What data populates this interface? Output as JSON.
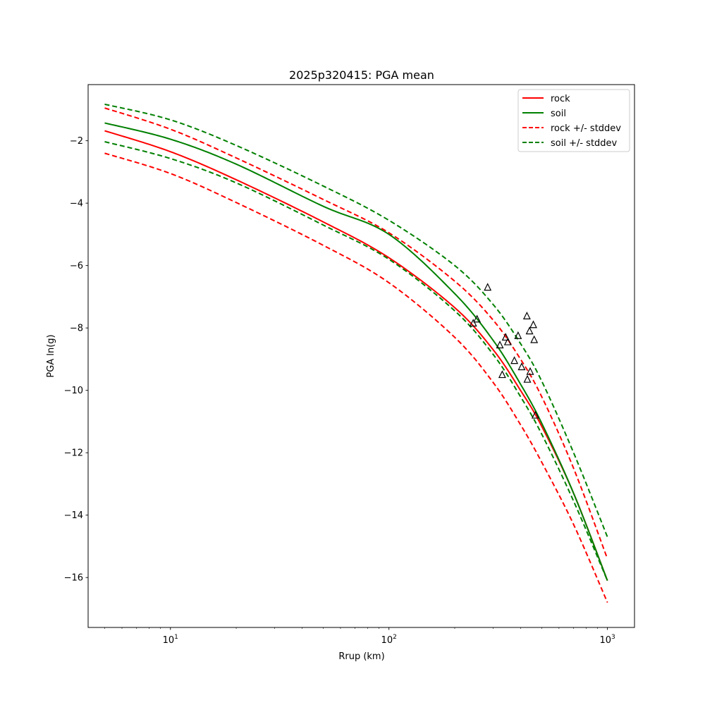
{
  "chart_data": {
    "type": "line",
    "title": "2025p320415: PGA mean",
    "xlabel": "Rrup (km)",
    "ylabel": "PGA ln(g)",
    "xscale": "log",
    "xlim": [
      4.2,
      1330
    ],
    "ylim": [
      -17.6,
      -0.2
    ],
    "xticks": [
      {
        "value": 10,
        "base": "10",
        "exp": "1"
      },
      {
        "value": 100,
        "base": "10",
        "exp": "2"
      },
      {
        "value": 1000,
        "base": "10",
        "exp": "3"
      }
    ],
    "yticks": [
      -2,
      -4,
      -6,
      -8,
      -10,
      -12,
      -14,
      -16
    ],
    "grid": false,
    "legend_position": "top-right",
    "legend": [
      {
        "label": "rock",
        "color": "#ff0000",
        "style": "solid"
      },
      {
        "label": "soil",
        "color": "#008000",
        "style": "solid"
      },
      {
        "label": "rock +/- stddev",
        "color": "#ff0000",
        "style": "dashed"
      },
      {
        "label": "soil +/- stddev",
        "color": "#008000",
        "style": "dashed"
      }
    ],
    "x": [
      5,
      10,
      20,
      50,
      100,
      200,
      300,
      400,
      500,
      700,
      1000
    ],
    "series": [
      {
        "name": "rock",
        "color": "#ff0000",
        "style": "solid",
        "values": [
          -1.68,
          -2.35,
          -3.25,
          -4.6,
          -5.75,
          -7.35,
          -8.7,
          -10.0,
          -11.15,
          -13.3,
          -16.1
        ]
      },
      {
        "name": "soil",
        "color": "#008000",
        "style": "solid",
        "values": [
          -1.43,
          -1.95,
          -2.75,
          -4.1,
          -5.0,
          -6.9,
          -8.4,
          -9.8,
          -11.05,
          -13.3,
          -16.1
        ]
      },
      {
        "name": "rock +/- stddev",
        "color": "#ff0000",
        "style": "dashed",
        "values": [
          -2.4,
          -3.05,
          -3.98,
          -5.35,
          -6.55,
          -8.3,
          -9.75,
          -11.1,
          -12.3,
          -14.3,
          -16.8
        ]
      },
      {
        "name": "rock +/- stddev",
        "color": "#ff0000",
        "style": "dashed",
        "values": [
          -0.95,
          -1.63,
          -2.55,
          -3.88,
          -4.95,
          -6.5,
          -7.75,
          -9.0,
          -10.2,
          -12.5,
          -15.4
        ]
      },
      {
        "name": "soil +/- stddev",
        "color": "#008000",
        "style": "dashed",
        "values": [
          -2.03,
          -2.57,
          -3.35,
          -4.7,
          -5.8,
          -7.45,
          -8.85,
          -10.2,
          -11.4,
          -13.55,
          -16.1
        ]
      },
      {
        "name": "soil +/- stddev",
        "color": "#008000",
        "style": "dashed",
        "values": [
          -0.83,
          -1.33,
          -2.15,
          -3.45,
          -4.55,
          -6.0,
          -7.25,
          -8.5,
          -9.7,
          -12.0,
          -14.7
        ]
      }
    ],
    "observations": {
      "marker": "triangle",
      "points": [
        {
          "x": 243,
          "y": -7.85
        },
        {
          "x": 253,
          "y": -7.72
        },
        {
          "x": 283,
          "y": -6.7
        },
        {
          "x": 322,
          "y": -8.55
        },
        {
          "x": 330,
          "y": -9.5
        },
        {
          "x": 342,
          "y": -8.3
        },
        {
          "x": 350,
          "y": -8.45
        },
        {
          "x": 375,
          "y": -9.05
        },
        {
          "x": 390,
          "y": -8.25
        },
        {
          "x": 405,
          "y": -9.25
        },
        {
          "x": 428,
          "y": -7.62
        },
        {
          "x": 430,
          "y": -9.65
        },
        {
          "x": 440,
          "y": -8.1
        },
        {
          "x": 443,
          "y": -9.4
        },
        {
          "x": 458,
          "y": -7.9
        },
        {
          "x": 462,
          "y": -8.38
        },
        {
          "x": 468,
          "y": -10.8
        }
      ]
    }
  }
}
